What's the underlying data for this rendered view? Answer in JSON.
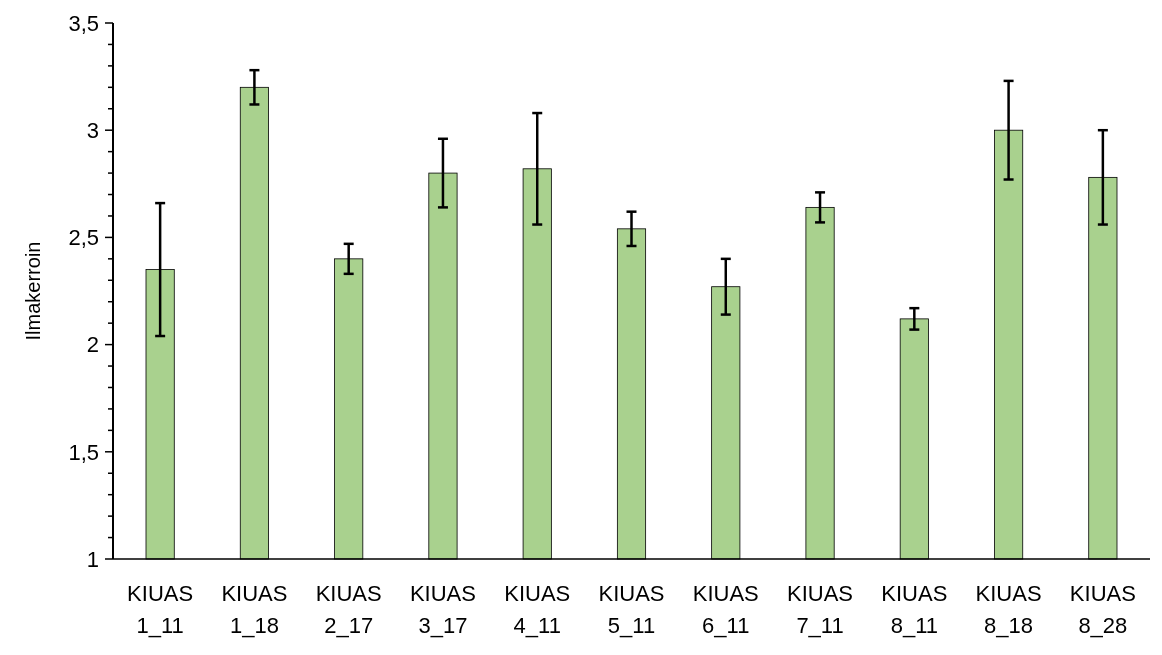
{
  "chart_data": {
    "type": "bar",
    "ylabel": "Ilmakerroin",
    "categories": [
      "KIUAS 1_11",
      "KIUAS 1_18",
      "KIUAS 2_17",
      "KIUAS 3_17",
      "KIUAS 4_11",
      "KIUAS 5_11",
      "KIUAS 6_11",
      "KIUAS 7_11",
      "KIUAS 8_11",
      "KIUAS 8_18",
      "KIUAS 8_28"
    ],
    "values": [
      2.35,
      3.2,
      2.4,
      2.8,
      2.82,
      2.54,
      2.27,
      2.64,
      2.12,
      3.0,
      2.78
    ],
    "errors": [
      0.31,
      0.08,
      0.07,
      0.16,
      0.26,
      0.08,
      0.13,
      0.07,
      0.05,
      0.23,
      0.22
    ],
    "color": "#a9d18e",
    "ylim": [
      1,
      3.5
    ],
    "yticks": [
      1,
      {
        "value": 1.1,
        "label": null
      },
      {
        "value": 1.2,
        "label": null
      },
      {
        "value": 1.3,
        "label": null
      },
      {
        "value": 1.4,
        "label": null
      },
      {
        "value": 1.5,
        "label": "1,5"
      },
      {
        "value": 1.6,
        "label": null
      },
      {
        "value": 1.7,
        "label": null
      },
      {
        "value": 1.8,
        "label": null
      },
      {
        "value": 1.9,
        "label": null
      },
      2,
      {
        "value": 2.1,
        "label": null
      },
      {
        "value": 2.2,
        "label": null
      },
      {
        "value": 2.3,
        "label": null
      },
      {
        "value": 2.4,
        "label": null
      },
      {
        "value": 2.5,
        "label": "2,5"
      },
      {
        "value": 2.6,
        "label": null
      },
      {
        "value": 2.7,
        "label": null
      },
      {
        "value": 2.8,
        "label": null
      },
      {
        "value": 2.9,
        "label": null
      },
      3,
      {
        "value": 3.1,
        "label": null
      },
      {
        "value": 3.2,
        "label": null
      },
      {
        "value": 3.3,
        "label": null
      },
      {
        "value": 3.4,
        "label": null
      },
      {
        "value": 3.5,
        "label": "3,5"
      }
    ],
    "grid": false
  }
}
